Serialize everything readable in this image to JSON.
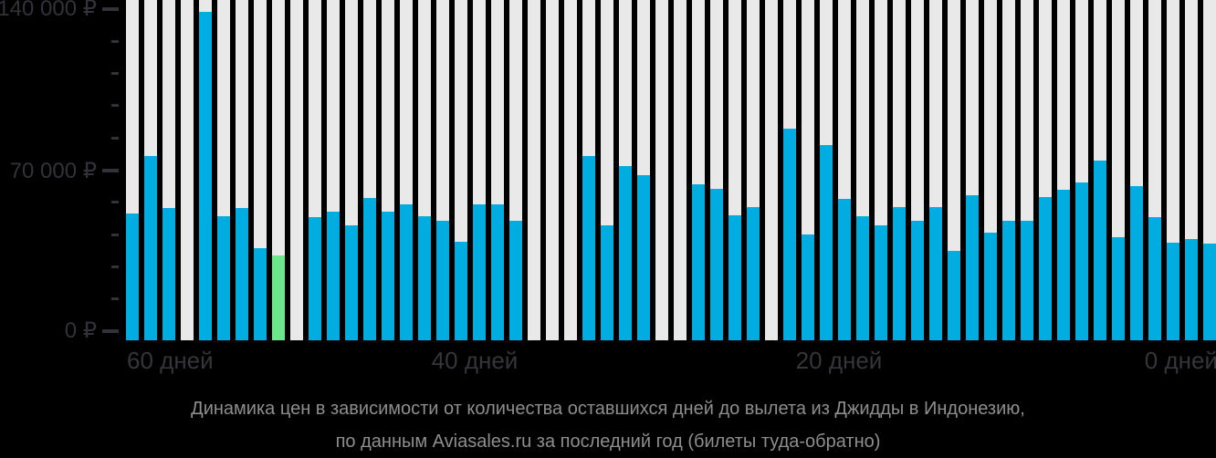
{
  "chart_data": {
    "type": "bar",
    "title": "Динамика цен в зависимости от количества оставшихся дней до вылета из Джидды в Индонезию, по данным Aviasales.ru за последний год (билеты туда-обратно)",
    "categories_days_before_departure": [
      60,
      59,
      58,
      57,
      56,
      55,
      54,
      53,
      52,
      51,
      50,
      49,
      48,
      47,
      46,
      45,
      44,
      43,
      42,
      41,
      40,
      39,
      38,
      37,
      36,
      35,
      34,
      33,
      32,
      31,
      30,
      29,
      28,
      27,
      26,
      25,
      24,
      23,
      22,
      21,
      20,
      19,
      18,
      17,
      16,
      15,
      14,
      13,
      12,
      11,
      10,
      9,
      8,
      7,
      6,
      5,
      4,
      3,
      2,
      1
    ],
    "values": [
      51000,
      76000,
      53500,
      null,
      139000,
      50000,
      53500,
      36000,
      33000,
      null,
      49500,
      52000,
      46000,
      58000,
      52000,
      55000,
      50000,
      48000,
      39000,
      55000,
      55000,
      48000,
      null,
      null,
      null,
      76000,
      46000,
      72000,
      68000,
      null,
      null,
      64000,
      62000,
      50500,
      54000,
      null,
      88000,
      42000,
      81000,
      57500,
      50000,
      46000,
      54000,
      48000,
      54000,
      35000,
      59000,
      43000,
      48000,
      48000,
      58500,
      61500,
      64500,
      74000,
      41000,
      63000,
      49500,
      38500,
      40000,
      38000
    ],
    "highlight_index": 8,
    "y_axis": {
      "max": 140000,
      "minor_tick_step": 14000,
      "tick_labels": [
        "140 000 ₽",
        "70 000 ₽",
        "0 ₽"
      ],
      "tick_values": [
        140000,
        70000,
        0
      ]
    },
    "x_axis": {
      "tick_labels": [
        "60 дней",
        "40 дней",
        "20 дней",
        "0 дней"
      ]
    },
    "grid": "off",
    "legend": "none"
  },
  "caption": {
    "line1": "Динамика цен в зависимости от количества оставшихся дней до вылета из Джидды в Индонезию,",
    "line2": "по данным Aviasales.ru за последний год (билеты туда-обратно)"
  },
  "colors": {
    "bar": "#00ace0",
    "bar_highlight": "#6ce68a",
    "column_background": "#e9e9e9",
    "background": "#000000",
    "axis_text": "#32323a",
    "caption_text": "#8e8e8e"
  }
}
